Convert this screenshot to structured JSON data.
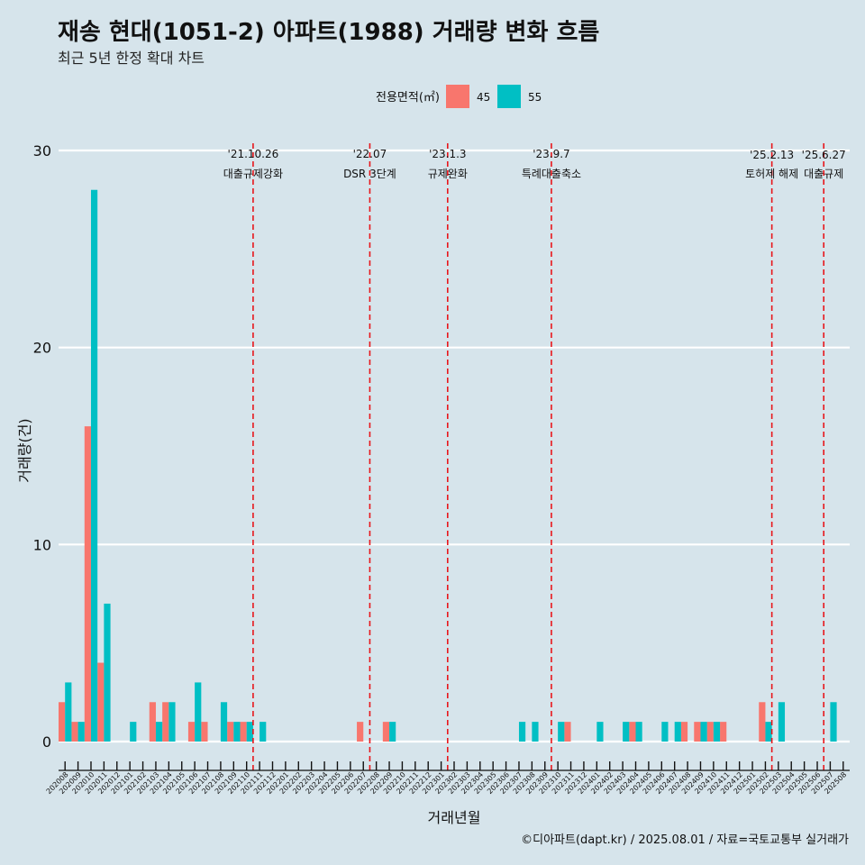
{
  "title": "재송 현대(1051-2) 아파트(1988) 거래량 변화 흐름",
  "subtitle": "최근 5년 한정 확대 차트",
  "caption": "©디아파트(dapt.kr) / 2025.08.01 / 자료=국토교통부 실거래가",
  "colors": {
    "s45": "#f8766d",
    "s55": "#00bfc4",
    "background": "#d6e4eb",
    "event_line": "#e8161b",
    "grid": "#ffffff"
  },
  "chart_data": {
    "type": "bar",
    "xlabel": "거래년월",
    "ylabel": "거래량(건)",
    "ylim": [
      0,
      30
    ],
    "yticks": [
      0,
      10,
      20,
      30
    ],
    "legend": {
      "title": "전용면적(㎡)",
      "position": "top"
    },
    "categories": [
      "202008",
      "202009",
      "202010",
      "202011",
      "202012",
      "202101",
      "202102",
      "202103",
      "202104",
      "202105",
      "202106",
      "202107",
      "202108",
      "202109",
      "202110",
      "202111",
      "202112",
      "202201",
      "202202",
      "202203",
      "202204",
      "202205",
      "202206",
      "202207",
      "202208",
      "202209",
      "202210",
      "202211",
      "202212",
      "202301",
      "202302",
      "202303",
      "202304",
      "202305",
      "202306",
      "202307",
      "202308",
      "202309",
      "202310",
      "202311",
      "202312",
      "202401",
      "202402",
      "202403",
      "202404",
      "202405",
      "202406",
      "202407",
      "202408",
      "202409",
      "202410",
      "202411",
      "202412",
      "202501",
      "202502",
      "202503",
      "202504",
      "202505",
      "202506",
      "202507",
      "202508"
    ],
    "series": [
      {
        "name": "45",
        "values": [
          2,
          1,
          16,
          4,
          0,
          0,
          0,
          2,
          2,
          0,
          1,
          1,
          0,
          1,
          1,
          0,
          0,
          0,
          0,
          0,
          0,
          0,
          0,
          1,
          0,
          1,
          0,
          0,
          0,
          0,
          0,
          0,
          0,
          0,
          0,
          0,
          0,
          0,
          0,
          1,
          0,
          0,
          0,
          0,
          1,
          0,
          0,
          0,
          1,
          1,
          1,
          1,
          0,
          0,
          2,
          0,
          0,
          0,
          0,
          0,
          0
        ]
      },
      {
        "name": "55",
        "values": [
          3,
          1,
          28,
          7,
          0,
          1,
          0,
          1,
          2,
          0,
          3,
          0,
          2,
          1,
          1,
          1,
          0,
          0,
          0,
          0,
          0,
          0,
          0,
          0,
          0,
          1,
          0,
          0,
          0,
          0,
          0,
          0,
          0,
          0,
          0,
          1,
          1,
          0,
          1,
          0,
          0,
          1,
          0,
          1,
          1,
          0,
          1,
          1,
          0,
          1,
          1,
          0,
          0,
          0,
          1,
          2,
          0,
          0,
          0,
          2,
          0
        ]
      }
    ],
    "events": [
      {
        "after": "202110",
        "date": "'21.10.26",
        "label": "대출규제강화"
      },
      {
        "after": "202207",
        "date": "'22.07",
        "label": "DSR 3단계"
      },
      {
        "after": "202301",
        "date": "'23.1.3",
        "label": "규제완화"
      },
      {
        "after": "202309",
        "date": "'23.9.7",
        "label": "특례대출축소"
      },
      {
        "after": "202502",
        "date": "'25.2.13",
        "label": "토허제 해제"
      },
      {
        "after": "202506",
        "date": "'25.6.27",
        "label": "대출규제"
      }
    ]
  }
}
